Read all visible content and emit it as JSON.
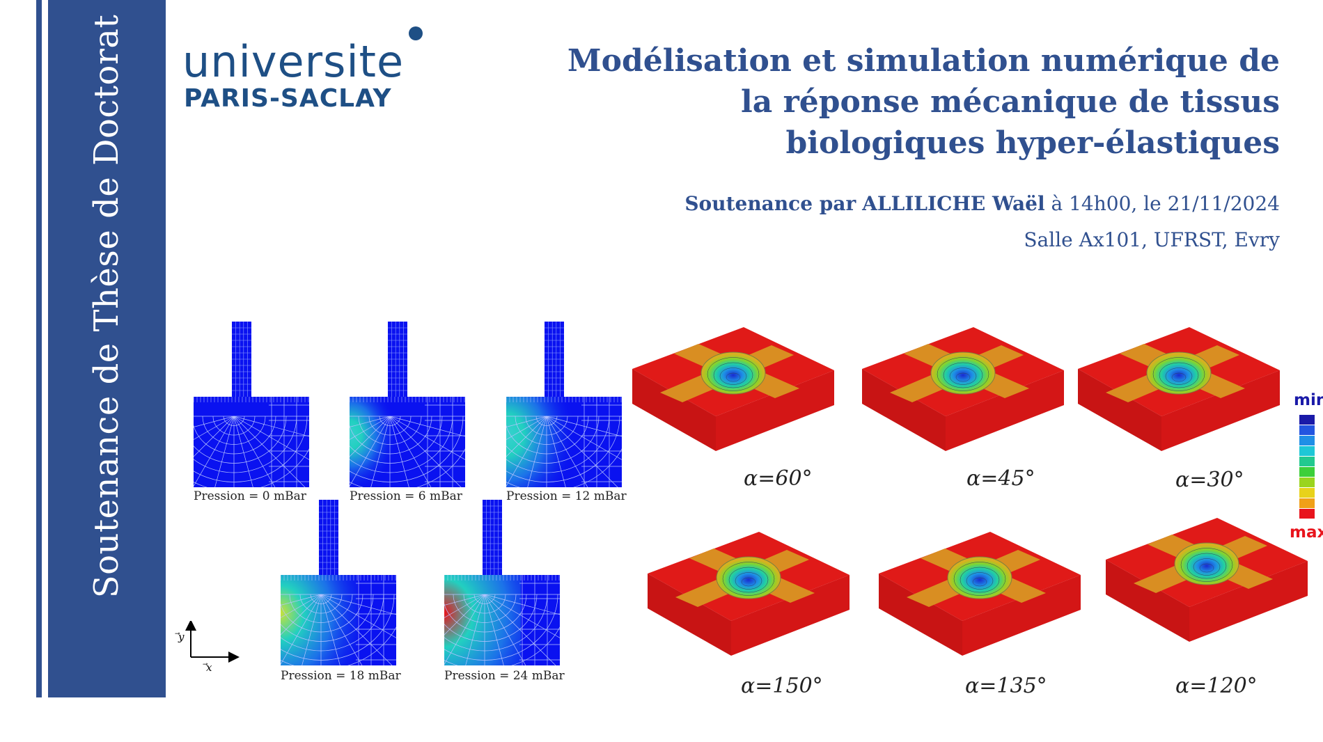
{
  "sidebar": {
    "vertical_title": "Soutenance de Thèse de Doctorat"
  },
  "logo": {
    "line1": "universite",
    "line2": "PARIS-SACLAY"
  },
  "title": {
    "line1": "Modélisation et simulation numérique de",
    "line2": "la réponse mécanique de tissus",
    "line3": "biologiques hyper-élastiques"
  },
  "defense": {
    "prefix": "Soutenance par",
    "author": "ALLILICHE Waël",
    "time": "à 14h00, le 21/11/2024",
    "location": "Salle Ax101, UFRST, Evry"
  },
  "mesh_panels": [
    {
      "caption": "Pression = 0 mBar",
      "level": 0
    },
    {
      "caption": "Pression = 6 mBar",
      "level": 0.25
    },
    {
      "caption": "Pression = 12 mBar",
      "level": 0.5
    },
    {
      "caption": "Pression = 18 mBar",
      "level": 0.75
    },
    {
      "caption": "Pression = 24 mBar",
      "level": 1
    }
  ],
  "axes": {
    "y": "⃗y",
    "x": "⃗x"
  },
  "sim_panels": [
    {
      "caption": "α=60°"
    },
    {
      "caption": "α=45°"
    },
    {
      "caption": "α=30°"
    },
    {
      "caption": "α=150°"
    },
    {
      "caption": "α=135°"
    },
    {
      "caption": "α=120°"
    }
  ],
  "colorbar": {
    "min_label": "min",
    "max_label": "max",
    "min_color": "#1a1aa8",
    "max_color": "#e8141c",
    "colors": [
      "#1a1aa8",
      "#2255e0",
      "#1f8fe6",
      "#1ec7d6",
      "#22c98f",
      "#3ccf3a",
      "#9ad41e",
      "#e8d21a",
      "#f0a018",
      "#e8141c"
    ]
  }
}
